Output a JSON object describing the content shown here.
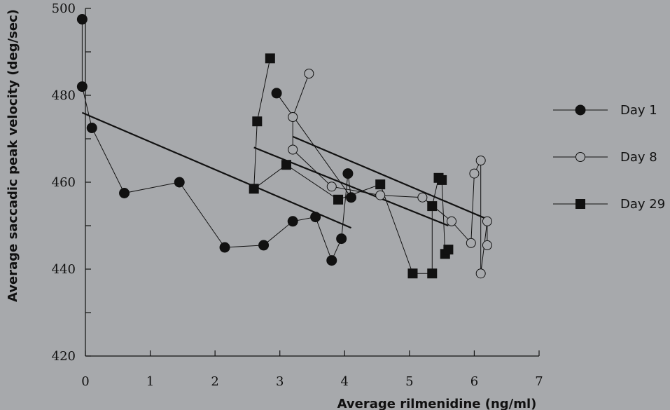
{
  "chart_data": {
    "type": "scatter",
    "title": "",
    "xlabel": "Average rilmenidine (ng/ml)",
    "ylabel": "Average saccadic peak velocity (deg/sec)",
    "xlim": [
      0,
      7
    ],
    "ylim": [
      420,
      500
    ],
    "xticks": [
      0,
      1,
      2,
      3,
      4,
      5,
      6,
      7
    ],
    "yticks": [
      420,
      440,
      460,
      480,
      500
    ],
    "grid": false,
    "legend_position": "right",
    "colors": {
      "line": "#111111",
      "open_fill": "#a7a9ac"
    },
    "series": [
      {
        "name": "Day 1",
        "marker": "filled-circle",
        "points": [
          {
            "x": -0.05,
            "y": 497.5
          },
          {
            "x": -0.05,
            "y": 482
          },
          {
            "x": 0.1,
            "y": 472.5
          },
          {
            "x": 0.6,
            "y": 457.5
          },
          {
            "x": 1.45,
            "y": 460
          },
          {
            "x": 2.15,
            "y": 445
          },
          {
            "x": 2.75,
            "y": 445.5
          },
          {
            "x": 3.2,
            "y": 451
          },
          {
            "x": 3.55,
            "y": 452
          },
          {
            "x": 3.8,
            "y": 442
          },
          {
            "x": 3.95,
            "y": 447
          },
          {
            "x": 4.05,
            "y": 462
          },
          {
            "x": 4.1,
            "y": 456.5
          },
          {
            "x": 2.95,
            "y": 480.5
          }
        ],
        "trend": [
          {
            "x": -0.05,
            "y": 476
          },
          {
            "x": 4.1,
            "y": 449.5
          }
        ]
      },
      {
        "name": "Day 8",
        "marker": "open-circle",
        "points": [
          {
            "x": 3.45,
            "y": 485
          },
          {
            "x": 3.2,
            "y": 475
          },
          {
            "x": 3.2,
            "y": 467.5
          },
          {
            "x": 3.8,
            "y": 459
          },
          {
            "x": 4.55,
            "y": 457
          },
          {
            "x": 5.2,
            "y": 456.5
          },
          {
            "x": 5.65,
            "y": 451
          },
          {
            "x": 5.95,
            "y": 446
          },
          {
            "x": 6.0,
            "y": 462
          },
          {
            "x": 6.1,
            "y": 465
          },
          {
            "x": 6.1,
            "y": 439
          },
          {
            "x": 6.2,
            "y": 451
          },
          {
            "x": 6.2,
            "y": 445.5
          }
        ],
        "trend": [
          {
            "x": 3.2,
            "y": 470.5
          },
          {
            "x": 6.2,
            "y": 451.5
          }
        ]
      },
      {
        "name": "Day 29",
        "marker": "filled-square",
        "points": [
          {
            "x": 2.85,
            "y": 488.5
          },
          {
            "x": 2.65,
            "y": 474
          },
          {
            "x": 2.6,
            "y": 458.5
          },
          {
            "x": 3.1,
            "y": 464
          },
          {
            "x": 3.9,
            "y": 456
          },
          {
            "x": 4.55,
            "y": 459.5
          },
          {
            "x": 5.05,
            "y": 439
          },
          {
            "x": 5.35,
            "y": 439
          },
          {
            "x": 5.35,
            "y": 454.5
          },
          {
            "x": 5.45,
            "y": 461
          },
          {
            "x": 5.5,
            "y": 460.5
          },
          {
            "x": 5.55,
            "y": 443.5
          },
          {
            "x": 5.6,
            "y": 444.5
          }
        ],
        "trend": [
          {
            "x": 2.6,
            "y": 468
          },
          {
            "x": 5.6,
            "y": 450
          }
        ]
      }
    ]
  }
}
